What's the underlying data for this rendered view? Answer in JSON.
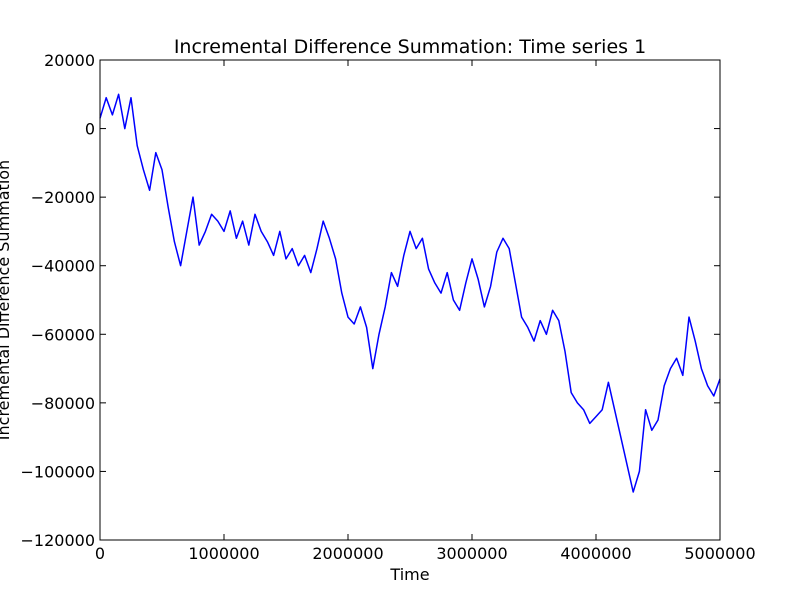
{
  "chart_data": {
    "type": "line",
    "title": "Incremental Difference Summation: Time series 1",
    "xlabel": "Time",
    "ylabel": "Incremental Difference Summation",
    "xlim": [
      0,
      5000000
    ],
    "ylim": [
      -120000,
      20000
    ],
    "grid": false,
    "legend": "none",
    "x_ticks": [
      0,
      1000000,
      2000000,
      3000000,
      4000000,
      5000000
    ],
    "x_tick_labels": [
      "0",
      "1000000",
      "2000000",
      "3000000",
      "4000000",
      "5000000"
    ],
    "y_ticks": [
      20000,
      0,
      -20000,
      -40000,
      -60000,
      -80000,
      -100000,
      -120000
    ],
    "y_tick_labels": [
      "20000",
      "0",
      "−20000",
      "−40000",
      "−60000",
      "−80000",
      "−100000",
      "−120000"
    ],
    "series": [
      {
        "color": "#0000ff",
        "x": [
          0,
          50000,
          100000,
          150000,
          200000,
          250000,
          300000,
          350000,
          400000,
          450000,
          500000,
          550000,
          600000,
          650000,
          700000,
          750000,
          800000,
          850000,
          900000,
          950000,
          1000000,
          1050000,
          1100000,
          1150000,
          1200000,
          1250000,
          1300000,
          1350000,
          1400000,
          1450000,
          1500000,
          1550000,
          1600000,
          1650000,
          1700000,
          1750000,
          1800000,
          1850000,
          1900000,
          1950000,
          2000000,
          2050000,
          2100000,
          2150000,
          2200000,
          2250000,
          2300000,
          2350000,
          2400000,
          2450000,
          2500000,
          2550000,
          2600000,
          2650000,
          2700000,
          2750000,
          2800000,
          2850000,
          2900000,
          2950000,
          3000000,
          3050000,
          3100000,
          3150000,
          3200000,
          3250000,
          3300000,
          3350000,
          3400000,
          3450000,
          3500000,
          3550000,
          3600000,
          3650000,
          3700000,
          3750000,
          3800000,
          3850000,
          3900000,
          3950000,
          4000000,
          4050000,
          4100000,
          4150000,
          4200000,
          4250000,
          4300000,
          4350000,
          4400000,
          4450000,
          4500000,
          4550000,
          4600000,
          4650000,
          4700000,
          4750000,
          4800000,
          4850000,
          4900000,
          4950000,
          5000000
        ],
        "y": [
          3000,
          9000,
          4000,
          10000,
          0,
          9000,
          -5000,
          -12000,
          -18000,
          -7000,
          -12000,
          -23000,
          -33000,
          -40000,
          -30000,
          -20000,
          -34000,
          -30000,
          -25000,
          -27000,
          -30000,
          -24000,
          -32000,
          -27000,
          -34000,
          -25000,
          -30000,
          -33000,
          -37000,
          -30000,
          -38000,
          -35000,
          -40000,
          -37000,
          -42000,
          -35000,
          -27000,
          -32000,
          -38000,
          -48000,
          -55000,
          -57000,
          -52000,
          -58000,
          -70000,
          -60000,
          -52000,
          -42000,
          -46000,
          -37000,
          -30000,
          -35000,
          -32000,
          -41000,
          -45000,
          -48000,
          -42000,
          -50000,
          -53000,
          -45000,
          -38000,
          -44000,
          -52000,
          -46000,
          -36000,
          -32000,
          -35000,
          -45000,
          -55000,
          -58000,
          -62000,
          -56000,
          -60000,
          -53000,
          -56000,
          -65000,
          -77000,
          -80000,
          -82000,
          -86000,
          -84000,
          -82000,
          -74000,
          -82000,
          -90000,
          -98000,
          -106000,
          -100000,
          -82000,
          -88000,
          -85000,
          -75000,
          -70000,
          -67000,
          -72000,
          -55000,
          -62000,
          -70000,
          -75000,
          -78000,
          -73000
        ]
      }
    ]
  }
}
